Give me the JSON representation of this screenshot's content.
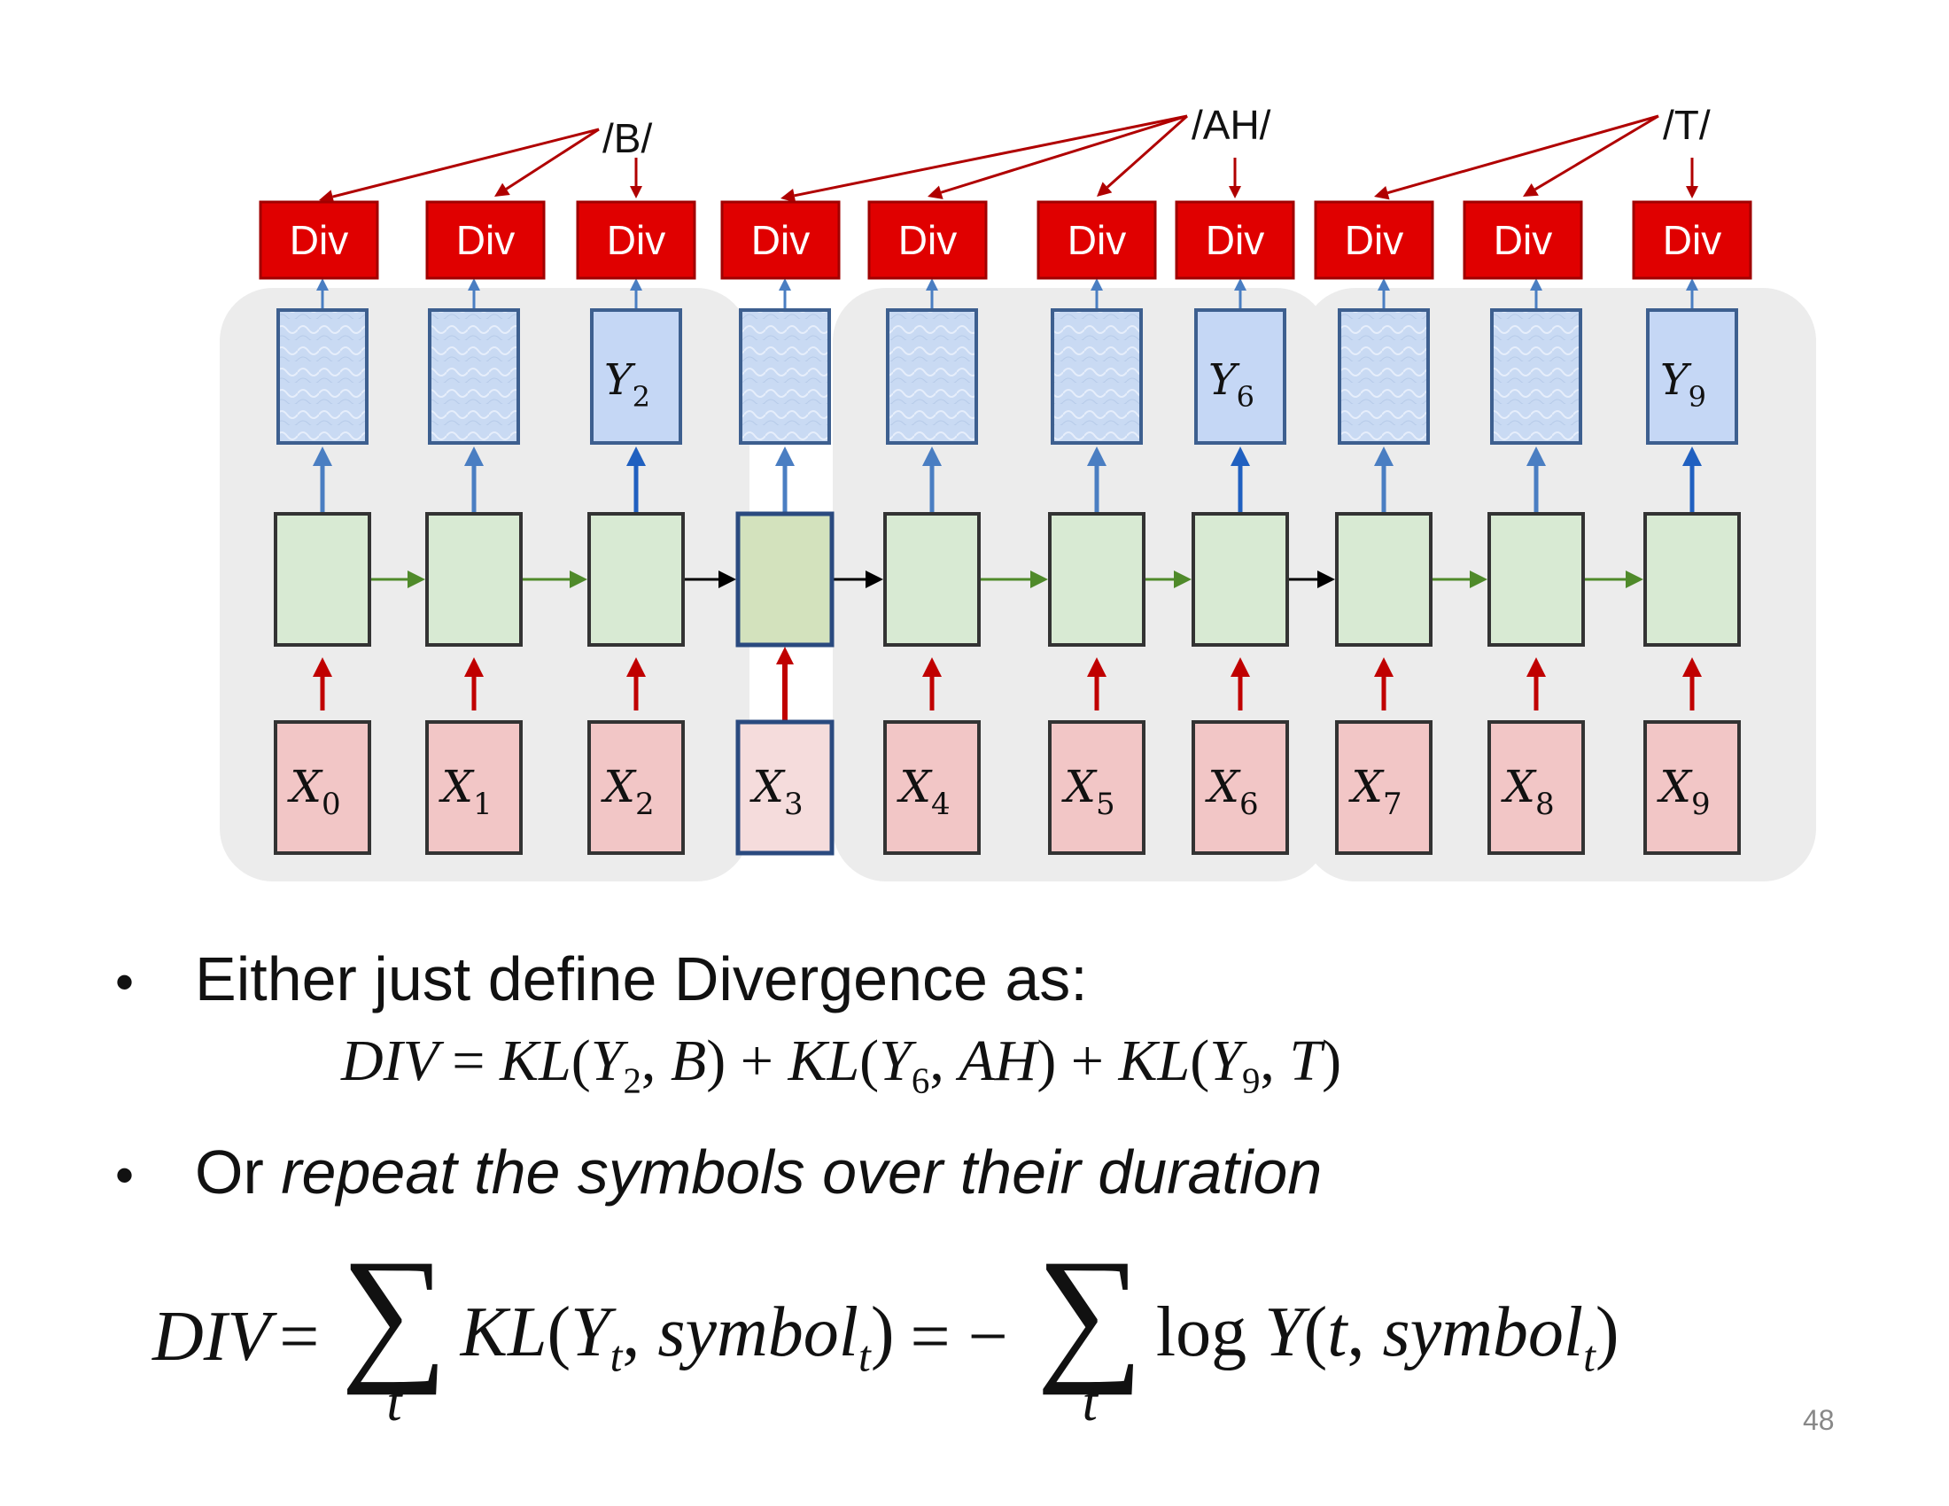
{
  "phonemes": [
    {
      "label": "/B/"
    },
    {
      "label": "/AH/"
    },
    {
      "label": "/T/"
    }
  ],
  "div_label": "Div",
  "outputs": [
    "",
    "",
    "Y",
    "",
    "",
    "",
    "Y",
    "",
    "",
    "Y"
  ],
  "output_subs": [
    "",
    "",
    "2",
    "",
    "",
    "",
    "6",
    "",
    "",
    "9"
  ],
  "input_letter": "X",
  "input_subs": [
    "0",
    "1",
    "2",
    "3",
    "4",
    "5",
    "6",
    "7",
    "8",
    "9"
  ],
  "colors": {
    "div_fill": "#e00000",
    "div_stroke": "#a00000",
    "phoneme_arrow": "#b00000",
    "output_fill": "#c5d7f5",
    "output_stroke": "#3d5f8f",
    "hidden_fill": "#d8ead3",
    "hidden_highlight_fill": "#d3e2bd",
    "hidden_stroke": "#333333",
    "input_fill": "#f2c6c6",
    "input_highlight_fill": "#f5dcdc",
    "recurrent_arrow": "#4f8a2a",
    "blank_arrow": "#000000",
    "up_arrow_blue": "#4a7ec2",
    "up_arrow_red": "#c00000",
    "panel_bg": "#ececec"
  },
  "bullets": [
    {
      "text": "Either just define Divergence as:"
    },
    {
      "prefix": "Or ",
      "italic": "repeat the symbols over their duration"
    }
  ],
  "equation1": {
    "lhs": "DIV",
    "terms": [
      {
        "fn": "KL",
        "y": "Y",
        "sub": "2",
        "sym": "B"
      },
      {
        "fn": "KL",
        "y": "Y",
        "sub": "6",
        "sym": "AH"
      },
      {
        "fn": "KL",
        "y": "Y",
        "sub": "9",
        "sym": "T"
      }
    ]
  },
  "equation2": {
    "lhs": "DIV",
    "sum_index": "t",
    "term1_fn": "KL",
    "term1_y": "Y",
    "term1_sub": "t",
    "term1_arg": "symbol",
    "term1_arg_sub": "t",
    "log": "log",
    "term2_y": "Y",
    "term2_arg1": "t",
    "term2_arg": "symbol",
    "term2_arg_sub": "t"
  },
  "page_number": "48"
}
